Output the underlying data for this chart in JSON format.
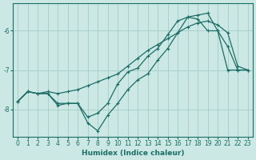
{
  "xlabel": "Humidex (Indice chaleur)",
  "ylabel": "",
  "background_color": "#cce8e5",
  "grid_color": "#aacfcc",
  "line_color": "#1a6e65",
  "xlim": [
    -0.5,
    23.5
  ],
  "ylim": [
    -8.7,
    -5.3
  ],
  "yticks": [
    -8,
    -7,
    -6
  ],
  "xticks": [
    0,
    1,
    2,
    3,
    4,
    5,
    6,
    7,
    8,
    9,
    10,
    11,
    12,
    13,
    14,
    15,
    16,
    17,
    18,
    19,
    20,
    21,
    22,
    23
  ],
  "line1_x": [
    0,
    1,
    2,
    3,
    4,
    5,
    6,
    7,
    8,
    9,
    10,
    11,
    12,
    13,
    14,
    15,
    16,
    17,
    18,
    19,
    20,
    21,
    22,
    23
  ],
  "line1_y": [
    -7.8,
    -7.55,
    -7.6,
    -7.6,
    -7.85,
    -7.85,
    -7.85,
    -8.35,
    -8.55,
    -8.15,
    -7.85,
    -7.5,
    -7.25,
    -7.1,
    -6.75,
    -6.45,
    -6.05,
    -5.65,
    -5.6,
    -5.55,
    -6.0,
    -7.0,
    -7.0,
    -7.0
  ],
  "line2_x": [
    0,
    1,
    2,
    3,
    4,
    5,
    6,
    7,
    8,
    9,
    10,
    11,
    12,
    13,
    14,
    15,
    16,
    17,
    18,
    19,
    20,
    21,
    22,
    23
  ],
  "line2_y": [
    -7.8,
    -7.55,
    -7.6,
    -7.6,
    -7.9,
    -7.85,
    -7.85,
    -8.2,
    -8.1,
    -7.85,
    -7.35,
    -7.05,
    -6.95,
    -6.65,
    -6.45,
    -6.1,
    -5.75,
    -5.65,
    -5.7,
    -6.0,
    -6.0,
    -6.4,
    -7.0,
    -7.0
  ],
  "line3_x": [
    0,
    1,
    2,
    3,
    4,
    5,
    6,
    7,
    8,
    9,
    10,
    11,
    12,
    13,
    14,
    15,
    16,
    17,
    18,
    19,
    20,
    21,
    22,
    23
  ],
  "line3_y": [
    -7.8,
    -7.55,
    -7.6,
    -7.55,
    -7.6,
    -7.55,
    -7.5,
    -7.4,
    -7.3,
    -7.2,
    -7.1,
    -6.9,
    -6.7,
    -6.5,
    -6.35,
    -6.2,
    -6.05,
    -5.9,
    -5.8,
    -5.75,
    -5.85,
    -6.05,
    -6.9,
    -7.0
  ]
}
